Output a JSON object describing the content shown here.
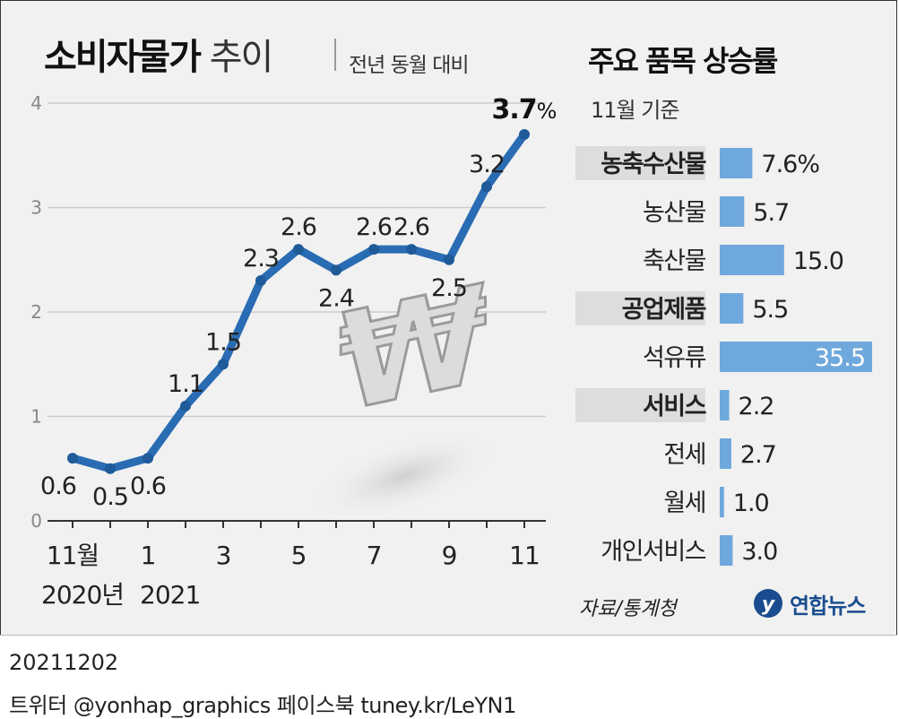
{
  "title_main": "소비자물가",
  "title_light": " 추이",
  "subtitle": "전년 동월 대비",
  "right_title": "주요 품목 상승률",
  "right_subtitle": "11월 기준",
  "source": "자료/통계청",
  "logo_text": "연합뉴스",
  "logo_mark": "y",
  "footer": {
    "date": "20211202",
    "social": "트위터 @yonhap_graphics  페이스북 tuney.kr/LeYN1"
  },
  "colors": {
    "line": "#2a6cb3",
    "bar": "#6fa8dc",
    "header_bg": "#dddddd"
  },
  "chart_data": [
    {
      "type": "line",
      "title": "소비자물가 추이",
      "subtitle": "전년 동월 대비",
      "ylim": [
        0,
        4
      ],
      "yticks": [
        "0",
        "1",
        "2",
        "3",
        "4"
      ],
      "grid": true,
      "values": [
        0.6,
        0.5,
        0.6,
        1.1,
        1.5,
        2.3,
        2.6,
        2.4,
        2.6,
        2.6,
        2.5,
        3.2,
        3.7
      ],
      "labels": [
        "0.6",
        "0.5",
        "0.6",
        "1.1",
        "1.5",
        "2.3",
        "2.6",
        "2.4",
        "2.6",
        "2.6",
        "2.5",
        "3.2",
        "3.7"
      ],
      "last_unit": "%",
      "xticks": [
        "11월",
        "",
        "1",
        "",
        "3",
        "",
        "5",
        "",
        "7",
        "",
        "9",
        "",
        "11"
      ],
      "year_labels": [
        "2020년",
        "2021"
      ]
    },
    {
      "type": "bar",
      "title": "주요 품목 상승률",
      "subtitle": "11월 기준",
      "max": 35.5,
      "items": [
        {
          "label": "농축수산물",
          "value": 7.6,
          "text": "7.6%",
          "header": true
        },
        {
          "label": "농산물",
          "value": 5.7,
          "text": "5.7",
          "header": false
        },
        {
          "label": "축산물",
          "value": 15.0,
          "text": "15.0",
          "header": false
        },
        {
          "label": "공업제품",
          "value": 5.5,
          "text": "5.5",
          "header": true
        },
        {
          "label": "석유류",
          "value": 35.5,
          "text": "35.5",
          "header": false
        },
        {
          "label": "서비스",
          "value": 2.2,
          "text": "2.2",
          "header": true
        },
        {
          "label": "전세",
          "value": 2.7,
          "text": "2.7",
          "header": false
        },
        {
          "label": "월세",
          "value": 1.0,
          "text": "1.0",
          "header": false
        },
        {
          "label": "개인서비스",
          "value": 3.0,
          "text": "3.0",
          "header": false
        }
      ]
    }
  ]
}
